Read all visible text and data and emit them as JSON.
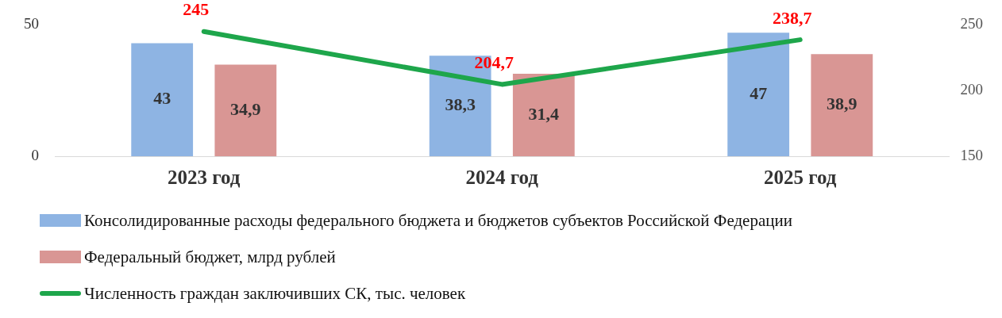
{
  "chart_data": {
    "type": "bar",
    "categories": [
      "2023 год",
      "2024 год",
      "2025 год"
    ],
    "series": [
      {
        "name": "Консолидированные расходы федерального бюджета и бюджетов субъектов Российской Федерации",
        "color": "#8eb4e3",
        "values": [
          43,
          38.3,
          47
        ],
        "value_labels": [
          "43",
          "38,3",
          "47"
        ]
      },
      {
        "name": "Федеральный бюджет, млрд рублей",
        "color": "#d99694",
        "values": [
          34.9,
          31.4,
          38.9
        ],
        "value_labels": [
          "34,9",
          "31,4",
          "38,9"
        ]
      },
      {
        "name": "Численность граждан заключивших СК, тыс. человек",
        "type": "line",
        "axis": "y2",
        "color": "#1ea64b",
        "values": [
          245,
          204.7,
          238.7
        ],
        "value_labels": [
          "245",
          "204,7",
          "238,7"
        ]
      }
    ],
    "ylim": [
      0,
      50
    ],
    "yticks": [
      0,
      50
    ],
    "y2lim": [
      150,
      250
    ],
    "y2ticks": [
      150,
      200,
      250
    ],
    "grid": false,
    "legend": "bottom",
    "marker": "none",
    "line_style": "solid"
  }
}
